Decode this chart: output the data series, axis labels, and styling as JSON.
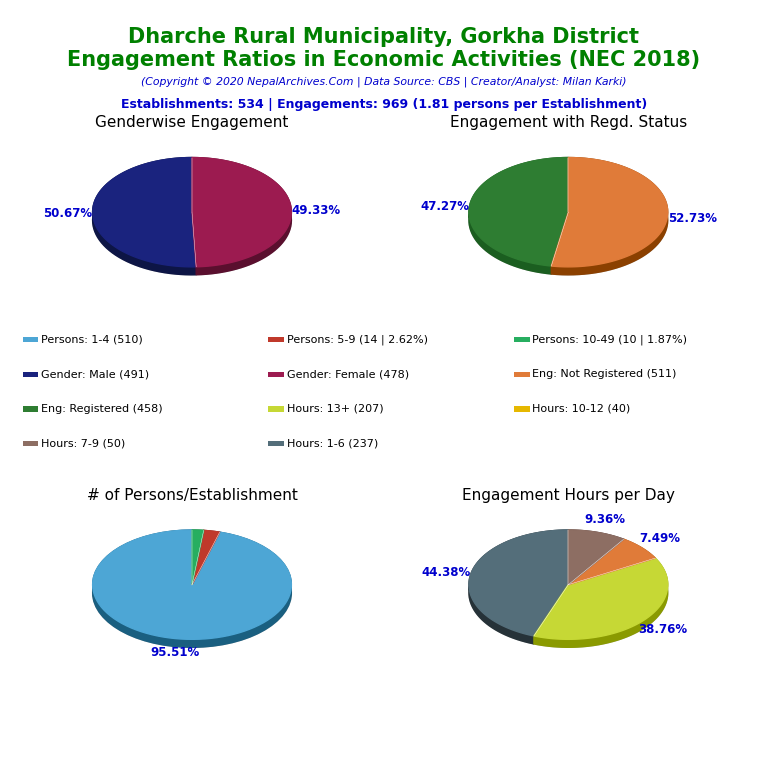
{
  "title_line1": "Dharche Rural Municipality, Gorkha District",
  "title_line2": "Engagement Ratios in Economic Activities (NEC 2018)",
  "copyright": "(Copyright © 2020 NepalArchives.Com | Data Source: CBS | Creator/Analyst: Milan Karki)",
  "establishments_line": "Establishments: 534 | Engagements: 969 (1.81 persons per Establishment)",
  "title_color": "#008000",
  "copyright_color": "#0000cd",
  "establishments_color": "#0000cd",
  "pie1_title": "Genderwise Engagement",
  "pie1_values": [
    491,
    478
  ],
  "pie1_colors": [
    "#1a237e",
    "#9c1b50"
  ],
  "pie1_dark_colors": [
    "#0d1545",
    "#5a0f2e"
  ],
  "pie1_labels": [
    "50.67%",
    "49.33%"
  ],
  "pie1_label_angles": [
    45,
    270
  ],
  "pie1_startangle": 90,
  "pie2_title": "Engagement with Regd. Status",
  "pie2_values": [
    458,
    511
  ],
  "pie2_colors": [
    "#2e7d32",
    "#e07b39"
  ],
  "pie2_dark_colors": [
    "#1b5e20",
    "#8b4000"
  ],
  "pie2_labels": [
    "47.27%",
    "52.73%"
  ],
  "pie2_label_angles": [
    45,
    270
  ],
  "pie2_startangle": 90,
  "pie3_title": "# of Persons/Establishment",
  "pie3_values": [
    510,
    14,
    10
  ],
  "pie3_colors": [
    "#4da6d5",
    "#c0392b",
    "#27ae60"
  ],
  "pie3_dark_colors": [
    "#1a5f80",
    "#7b241c",
    "#1a6b40"
  ],
  "pie3_labels": [
    "95.51%",
    "",
    ""
  ],
  "pie3_label_angles": [
    200,
    0,
    0
  ],
  "pie3_startangle": 90,
  "pie4_title": "Engagement Hours per Day",
  "pie4_values": [
    430,
    375,
    73,
    91
  ],
  "pie4_colors": [
    "#546e7a",
    "#c6d835",
    "#e07b39",
    "#8d6e63"
  ],
  "pie4_dark_colors": [
    "#263238",
    "#8a9a00",
    "#8b4000",
    "#4e342e"
  ],
  "pie4_labels": [
    "44.38%",
    "38.76%",
    "7.49%",
    "9.36%"
  ],
  "pie4_label_angles": [
    45,
    270,
    225,
    135
  ],
  "pie4_startangle": 90,
  "legend_items": [
    {
      "label": "Persons: 1-4 (510)",
      "color": "#4da6d5"
    },
    {
      "label": "Persons: 5-9 (14 | 2.62%)",
      "color": "#c0392b"
    },
    {
      "label": "Persons: 10-49 (10 | 1.87%)",
      "color": "#27ae60"
    },
    {
      "label": "Gender: Male (491)",
      "color": "#1a237e"
    },
    {
      "label": "Gender: Female (478)",
      "color": "#9c1b50"
    },
    {
      "label": "Eng: Not Registered (511)",
      "color": "#e07b39"
    },
    {
      "label": "Eng: Registered (458)",
      "color": "#2e7d32"
    },
    {
      "label": "Hours: 13+ (207)",
      "color": "#c6d835"
    },
    {
      "label": "Hours: 10-12 (40)",
      "color": "#e6b800"
    },
    {
      "label": "Hours: 7-9 (50)",
      "color": "#8d6e63"
    },
    {
      "label": "Hours: 1-6 (237)",
      "color": "#546e7a"
    }
  ],
  "label_color": "#0000cd",
  "background_color": "#ffffff"
}
